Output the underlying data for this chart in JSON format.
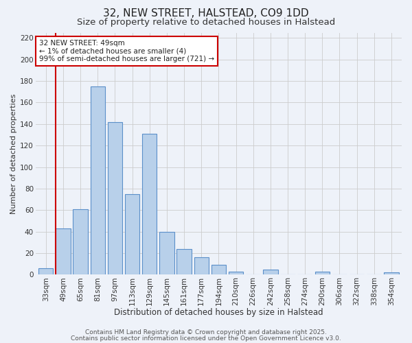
{
  "title": "32, NEW STREET, HALSTEAD, CO9 1DD",
  "subtitle": "Size of property relative to detached houses in Halstead",
  "xlabel": "Distribution of detached houses by size in Halstead",
  "ylabel": "Number of detached properties",
  "bar_labels": [
    "33sqm",
    "49sqm",
    "65sqm",
    "81sqm",
    "97sqm",
    "113sqm",
    "129sqm",
    "145sqm",
    "161sqm",
    "177sqm",
    "194sqm",
    "210sqm",
    "226sqm",
    "242sqm",
    "258sqm",
    "274sqm",
    "290sqm",
    "306sqm",
    "322sqm",
    "338sqm",
    "354sqm"
  ],
  "bar_values": [
    6,
    43,
    61,
    175,
    142,
    75,
    131,
    40,
    24,
    16,
    9,
    3,
    0,
    5,
    0,
    0,
    3,
    0,
    0,
    0,
    2
  ],
  "bar_color": "#b8d0ea",
  "bar_edge_color": "#5b8fc9",
  "highlight_bar_index": 1,
  "highlight_color": "#cc0000",
  "ylim": [
    0,
    225
  ],
  "yticks": [
    0,
    20,
    40,
    60,
    80,
    100,
    120,
    140,
    160,
    180,
    200,
    220
  ],
  "annotation_title": "32 NEW STREET: 49sqm",
  "annotation_line1": "← 1% of detached houses are smaller (4)",
  "annotation_line2": "99% of semi-detached houses are larger (721) →",
  "annotation_box_facecolor": "#ffffff",
  "annotation_border_color": "#cc0000",
  "footer1": "Contains HM Land Registry data © Crown copyright and database right 2025.",
  "footer2": "Contains public sector information licensed under the Open Government Licence v3.0.",
  "bg_color": "#eef2f9",
  "plot_bg_color": "#eef2f9",
  "title_fontsize": 11,
  "subtitle_fontsize": 9.5,
  "xlabel_fontsize": 8.5,
  "ylabel_fontsize": 8,
  "tick_fontsize": 7.5,
  "annotation_fontsize": 7.5,
  "footer_fontsize": 6.5
}
